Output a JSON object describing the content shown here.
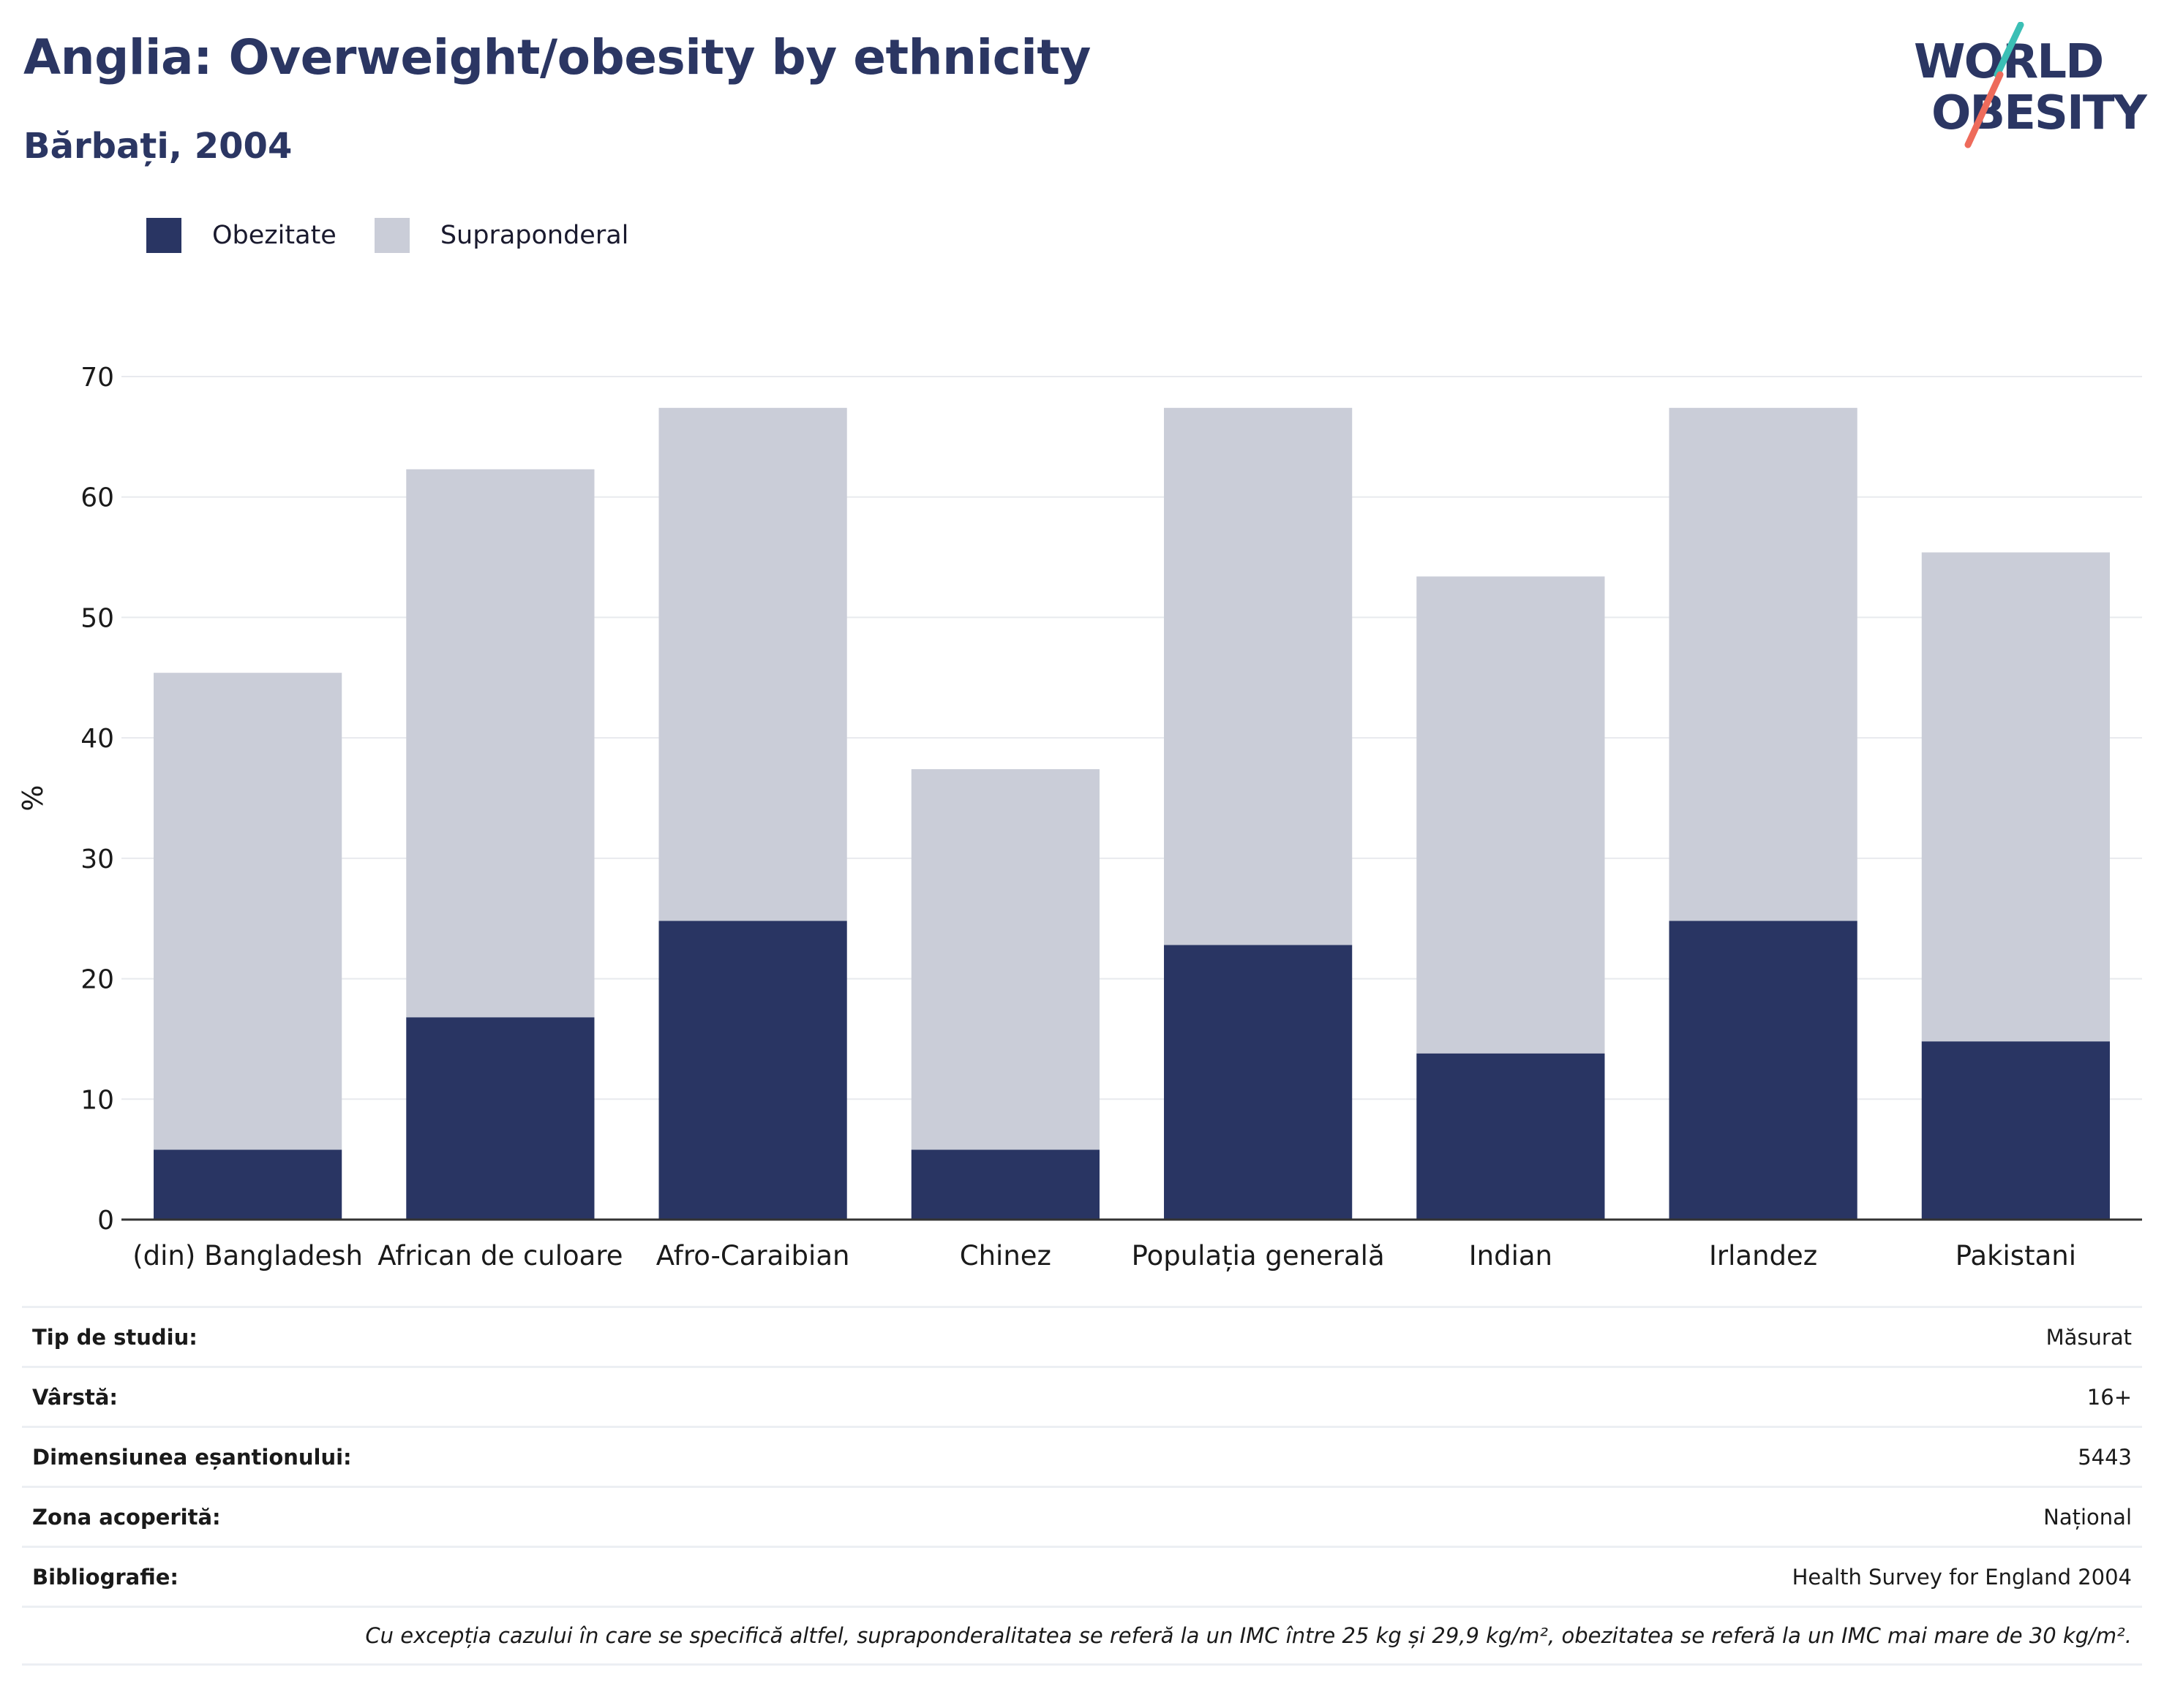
{
  "header": {
    "title": "Anglia: Overweight/obesity by ethnicity",
    "subtitle": "Bărbați, 2004"
  },
  "logo": {
    "line1": "WORLD",
    "line2": "OBESITY"
  },
  "colors": {
    "obesity": "#293563",
    "overweight": "#cacdd8",
    "title": "#2b3663",
    "logo_teal": "#3bbfb5",
    "logo_coral": "#ee6b5b"
  },
  "chart_data": {
    "type": "bar",
    "stacked": true,
    "categories": [
      "(din) Bangladesh",
      "African de culoare",
      "Afro-Caraibian",
      "Chinez",
      "Populația generală",
      "Indian",
      "Irlandez",
      "Pakistani"
    ],
    "series": [
      {
        "name": "Obezitate",
        "values": [
          5.8,
          16.8,
          24.8,
          5.8,
          22.8,
          13.8,
          24.8,
          14.8
        ]
      },
      {
        "name": "Supraponderal",
        "values": [
          39.6,
          45.5,
          42.6,
          31.6,
          44.6,
          39.6,
          42.6,
          40.6
        ]
      }
    ],
    "ylabel": "%",
    "ylim": [
      0,
      70
    ],
    "yticks": [
      0,
      10,
      20,
      30,
      40,
      50,
      60,
      70
    ],
    "grid": true,
    "legend": "top-left"
  },
  "meta": [
    {
      "key": "Tip de studiu:",
      "value": "Măsurat"
    },
    {
      "key": "Vârstă:",
      "value": "16+"
    },
    {
      "key": "Dimensiunea eșantionului:",
      "value": "5443"
    },
    {
      "key": "Zona acoperită:",
      "value": "Național"
    },
    {
      "key": "Bibliografie:",
      "value": "Health Survey for England 2004"
    }
  ],
  "note": "Cu excepția cazului în care se specifică altfel, supraponderalitatea se referă la un IMC între 25 kg și 29,9 kg/m², obezitatea se referă la un IMC mai mare de 30 kg/m²."
}
